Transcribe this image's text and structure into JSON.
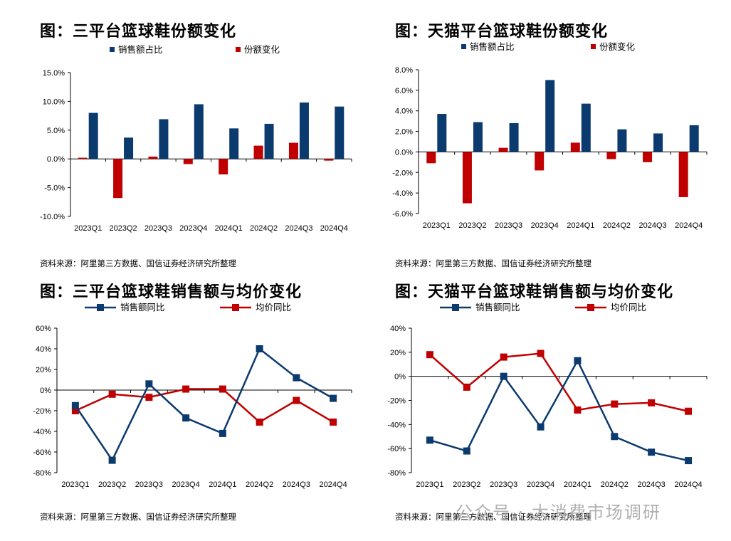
{
  "watermark": "公众号 · 大消费市场调研",
  "colors": {
    "primary": "#0b3a6e",
    "secondary": "#c00000"
  },
  "chart_data": [
    {
      "id": "c1",
      "type": "bar",
      "title": "图：三平台篮球鞋份额变化",
      "categories": [
        "2023Q1",
        "2023Q2",
        "2023Q3",
        "2023Q4",
        "2024Q1",
        "2024Q2",
        "2024Q3",
        "2024Q4"
      ],
      "series": [
        {
          "name": "销售额占比",
          "values": [
            8.0,
            3.7,
            6.9,
            9.5,
            5.3,
            6.1,
            9.8,
            9.1
          ]
        },
        {
          "name": "份额变化",
          "values": [
            0.2,
            -6.8,
            0.4,
            -0.9,
            -2.7,
            2.3,
            2.8,
            -0.3
          ]
        }
      ],
      "ylim": [
        -10,
        15
      ],
      "yticks": [
        15,
        10,
        5,
        0,
        -5,
        -10
      ],
      "ytick_labels": [
        "15.0%",
        "10.0%",
        "5.0%",
        "0.0%",
        "-5.0%",
        "-10.0%"
      ],
      "source": "资料来源：阿里第三方数据、国信证券经济研究所整理"
    },
    {
      "id": "c2",
      "type": "bar",
      "title": "图：天猫平台篮球鞋份额变化",
      "categories": [
        "2023Q1",
        "2023Q2",
        "2023Q3",
        "2023Q4",
        "2024Q1",
        "2024Q2",
        "2024Q3",
        "2024Q4"
      ],
      "series": [
        {
          "name": "销售额占比",
          "values": [
            3.7,
            2.9,
            2.8,
            7.0,
            4.7,
            2.2,
            1.8,
            2.6
          ]
        },
        {
          "name": "份额变化",
          "values": [
            -1.1,
            -5.0,
            0.4,
            -1.8,
            0.9,
            -0.7,
            -1.0,
            -4.4
          ]
        }
      ],
      "ylim": [
        -6,
        8
      ],
      "yticks": [
        8,
        6,
        4,
        2,
        0,
        -2,
        -4,
        -6
      ],
      "ytick_labels": [
        "8.0%",
        "6.0%",
        "4.0%",
        "2.0%",
        "0.0%",
        "-2.0%",
        "-4.0%",
        "-6.0%"
      ],
      "source": "资料来源：阿里第三方数据、国信证券经济研究所整理"
    },
    {
      "id": "c3",
      "type": "line",
      "title": "图：三平台篮球鞋销售额与均价变化",
      "categories": [
        "2023Q1",
        "2023Q2",
        "2023Q3",
        "2023Q4",
        "2024Q1",
        "2024Q2",
        "2024Q3",
        "2024Q4"
      ],
      "series": [
        {
          "name": "销售额同比",
          "values": [
            -15,
            -68,
            6,
            -27,
            -42,
            40,
            12,
            -8
          ]
        },
        {
          "name": "均价同比",
          "values": [
            -20,
            -4,
            -7,
            1,
            1,
            -31,
            -10,
            -31
          ]
        }
      ],
      "ylim": [
        -80,
        60
      ],
      "yticks": [
        60,
        40,
        20,
        0,
        -20,
        -40,
        -60,
        -80
      ],
      "ytick_labels": [
        "60%",
        "40%",
        "20%",
        "0%",
        "-20%",
        "-40%",
        "-60%",
        "-80%"
      ],
      "source": "资料来源：阿里第三方数据、国信证券经济研究所整理"
    },
    {
      "id": "c4",
      "type": "line",
      "title": "图：天猫平台篮球鞋销售额与均价变化",
      "categories": [
        "2023Q1",
        "2023Q2",
        "2023Q3",
        "2023Q4",
        "2024Q1",
        "2024Q2",
        "2024Q3",
        "2024Q4"
      ],
      "series": [
        {
          "name": "销售额同比",
          "values": [
            -53,
            -62,
            0,
            -42,
            13,
            -50,
            -63,
            -70
          ]
        },
        {
          "name": "均价同比",
          "values": [
            18,
            -9,
            16,
            19,
            -28,
            -23,
            -22,
            -29
          ]
        }
      ],
      "ylim": [
        -80,
        40
      ],
      "yticks": [
        40,
        20,
        0,
        -20,
        -40,
        -60,
        -80
      ],
      "ytick_labels": [
        "40%",
        "20%",
        "0%",
        "-20%",
        "-40%",
        "-60%",
        "-80%"
      ],
      "source": "资料来源：阿里第三方数据、国信证券经济研究所整理"
    }
  ]
}
